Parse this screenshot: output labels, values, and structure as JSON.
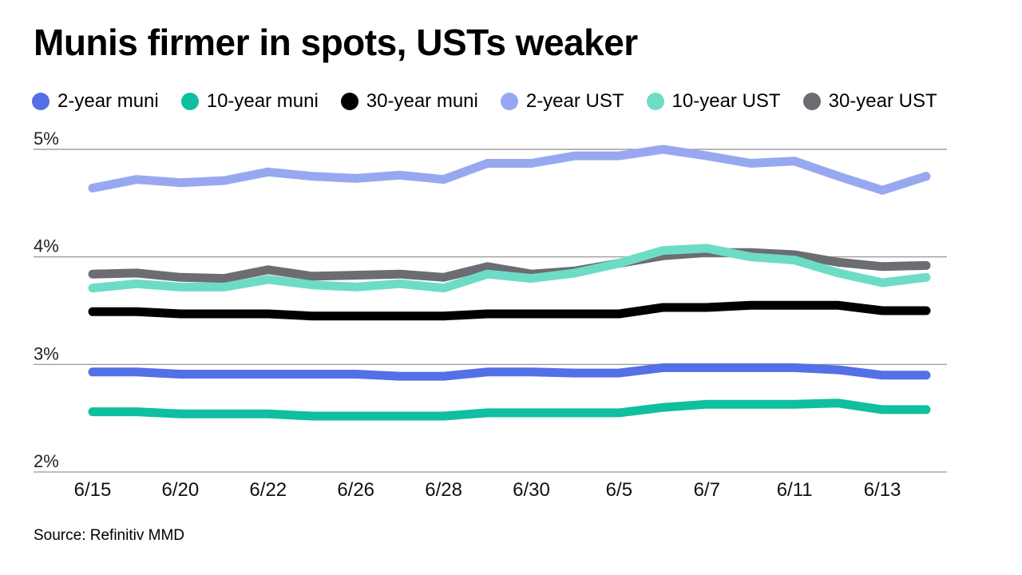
{
  "title": "Munis firmer in spots, USTs weaker",
  "source": "Source: Refinitiv MMD",
  "chart_data": {
    "type": "line",
    "title": "Munis firmer in spots, USTs weaker",
    "xlabel": "",
    "ylabel": "",
    "ylim": [
      2,
      5
    ],
    "yticks": [
      {
        "value": 2,
        "label": "2%"
      },
      {
        "value": 3,
        "label": "3%"
      },
      {
        "value": 4,
        "label": "4%"
      },
      {
        "value": 5,
        "label": "5%"
      }
    ],
    "x_tick_labels": [
      "6/15",
      "6/20",
      "6/22",
      "6/26",
      "6/28",
      "6/30",
      "6/5",
      "6/7",
      "6/11",
      "6/13"
    ],
    "x_tick_positions": [
      0,
      2,
      4,
      6,
      8,
      10,
      12,
      14,
      16,
      18
    ],
    "point_count": 20,
    "grid": true,
    "legend_position": "top",
    "series": [
      {
        "name": "2-year UST",
        "color": "#98a8f0",
        "values": [
          4.64,
          4.72,
          4.69,
          4.71,
          4.79,
          4.75,
          4.73,
          4.76,
          4.72,
          4.87,
          4.87,
          4.94,
          4.94,
          5.0,
          4.94,
          4.87,
          4.89,
          4.75,
          4.62,
          4.75
        ]
      },
      {
        "name": "30-year UST",
        "color": "#6b6d72",
        "values": [
          3.84,
          3.85,
          3.81,
          3.8,
          3.88,
          3.82,
          3.83,
          3.84,
          3.81,
          3.91,
          3.84,
          3.87,
          3.94,
          4.01,
          4.04,
          4.04,
          4.02,
          3.95,
          3.91,
          3.92
        ]
      },
      {
        "name": "10-year UST",
        "color": "#6ddcc7",
        "values": [
          3.71,
          3.75,
          3.72,
          3.72,
          3.79,
          3.74,
          3.72,
          3.75,
          3.71,
          3.84,
          3.8,
          3.85,
          3.94,
          4.06,
          4.08,
          4.0,
          3.97,
          3.85,
          3.76,
          3.81
        ]
      },
      {
        "name": "30-year muni",
        "color": "#000000",
        "values": [
          3.49,
          3.49,
          3.47,
          3.47,
          3.47,
          3.45,
          3.45,
          3.45,
          3.45,
          3.47,
          3.47,
          3.47,
          3.47,
          3.53,
          3.53,
          3.55,
          3.55,
          3.55,
          3.5,
          3.5
        ]
      },
      {
        "name": "2-year muni",
        "color": "#5470e6",
        "values": [
          2.93,
          2.93,
          2.91,
          2.91,
          2.91,
          2.91,
          2.91,
          2.89,
          2.89,
          2.93,
          2.93,
          2.92,
          2.92,
          2.97,
          2.97,
          2.97,
          2.97,
          2.95,
          2.9,
          2.9
        ]
      },
      {
        "name": "10-year muni",
        "color": "#0fbf9f",
        "values": [
          2.56,
          2.56,
          2.54,
          2.54,
          2.54,
          2.52,
          2.52,
          2.52,
          2.52,
          2.55,
          2.55,
          2.55,
          2.55,
          2.6,
          2.63,
          2.63,
          2.63,
          2.64,
          2.58,
          2.58
        ]
      }
    ]
  },
  "legend": [
    {
      "label": "2-year muni",
      "color": "#5470e6"
    },
    {
      "label": "10-year muni",
      "color": "#0fbf9f"
    },
    {
      "label": "30-year muni",
      "color": "#000000"
    },
    {
      "label": "2-year UST",
      "color": "#98a8f0"
    },
    {
      "label": "10-year UST",
      "color": "#6ddcc7"
    },
    {
      "label": "30-year UST",
      "color": "#6b6d72"
    }
  ]
}
